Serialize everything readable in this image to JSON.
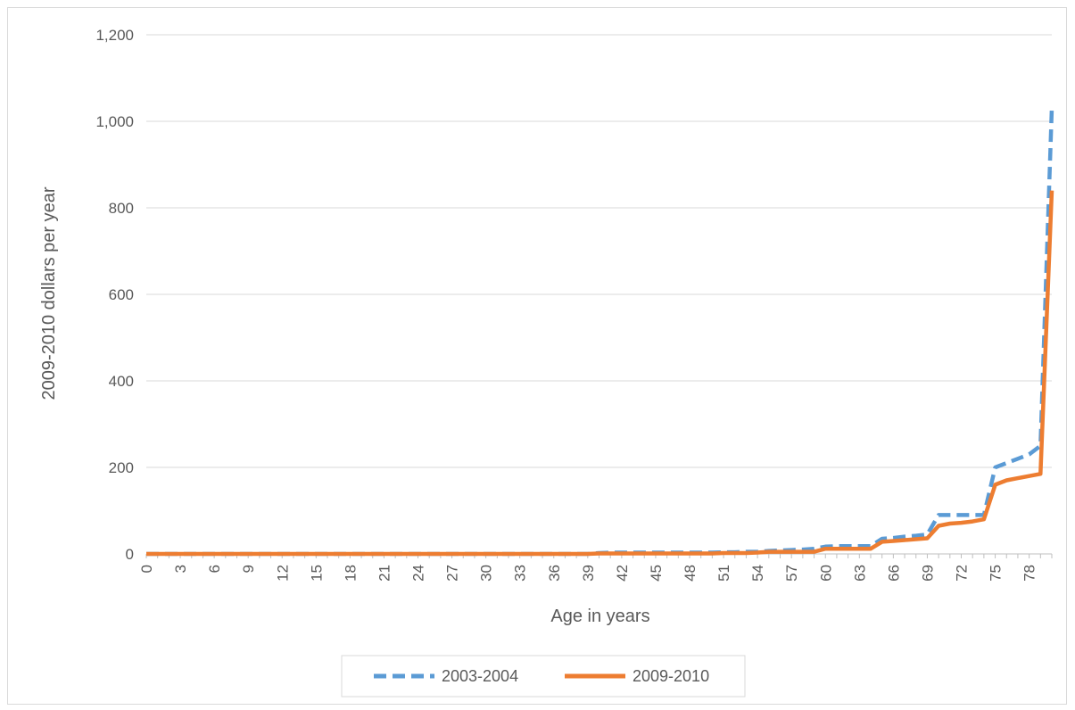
{
  "chart_data": {
    "type": "line",
    "title": "",
    "xlabel": "Age in years",
    "ylabel": "2009-2010 dollars per year",
    "ylim": [
      0,
      1200
    ],
    "yticks": [
      0,
      200,
      400,
      600,
      800,
      1000,
      1200
    ],
    "ytick_labels": [
      "0",
      "200",
      "400",
      "600",
      "800",
      "1,000",
      "1,200"
    ],
    "x": [
      0,
      1,
      2,
      3,
      4,
      5,
      6,
      7,
      8,
      9,
      10,
      11,
      12,
      13,
      14,
      15,
      16,
      17,
      18,
      19,
      20,
      21,
      22,
      23,
      24,
      25,
      26,
      27,
      28,
      29,
      30,
      31,
      32,
      33,
      34,
      35,
      36,
      37,
      38,
      39,
      40,
      41,
      42,
      43,
      44,
      45,
      46,
      47,
      48,
      49,
      50,
      51,
      52,
      53,
      54,
      55,
      56,
      57,
      58,
      59,
      60,
      61,
      62,
      63,
      64,
      65,
      66,
      67,
      68,
      69,
      70,
      71,
      72,
      73,
      74,
      75,
      76,
      77,
      78,
      79,
      80
    ],
    "xtick_labels": [
      "0",
      "3",
      "6",
      "9",
      "12",
      "15",
      "18",
      "21",
      "24",
      "27",
      "30",
      "33",
      "36",
      "39",
      "42",
      "45",
      "48",
      "51",
      "54",
      "57",
      "60",
      "63",
      "66",
      "69",
      "72",
      "75",
      "78"
    ],
    "grid": "horizontal",
    "legend_position": "bottom",
    "series": [
      {
        "name": "2003-2004",
        "color": "#5B9BD5",
        "dash": "dashed",
        "values": [
          0,
          0,
          0,
          0,
          0,
          0,
          0,
          0,
          0,
          0,
          0,
          0,
          0,
          0,
          0,
          0,
          0,
          0,
          0,
          0,
          0,
          0,
          0,
          0,
          0,
          0,
          0,
          0,
          0,
          0,
          0,
          0,
          0,
          0,
          0,
          0,
          0,
          0,
          0,
          0,
          2,
          3,
          3,
          3,
          3,
          3,
          3,
          3,
          3,
          3,
          3,
          4,
          4,
          5,
          5,
          7,
          8,
          9,
          10,
          12,
          17,
          18,
          18,
          18,
          18,
          35,
          37,
          40,
          42,
          45,
          90,
          90,
          90,
          90,
          90,
          200,
          210,
          220,
          230,
          250,
          1030
        ]
      },
      {
        "name": "2009-2010",
        "color": "#ED7D31",
        "dash": "solid",
        "values": [
          0,
          0,
          0,
          0,
          0,
          0,
          0,
          0,
          0,
          0,
          0,
          0,
          0,
          0,
          0,
          0,
          0,
          0,
          0,
          0,
          0,
          0,
          0,
          0,
          0,
          0,
          0,
          0,
          0,
          0,
          0,
          0,
          0,
          0,
          0,
          0,
          0,
          0,
          0,
          0,
          1,
          1,
          1,
          1,
          1,
          1,
          1,
          1,
          1,
          1,
          1,
          2,
          2,
          2,
          3,
          5,
          5,
          5,
          5,
          5,
          12,
          12,
          12,
          12,
          12,
          28,
          30,
          32,
          34,
          36,
          65,
          70,
          72,
          75,
          80,
          160,
          170,
          175,
          180,
          185,
          840
        ]
      }
    ]
  }
}
